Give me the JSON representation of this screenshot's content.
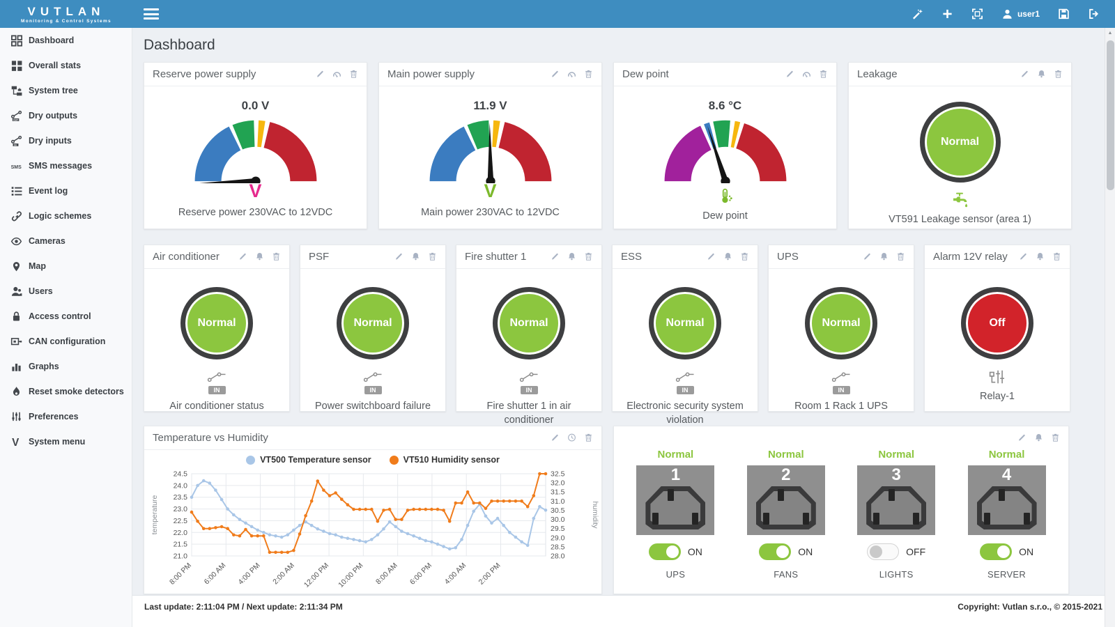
{
  "header": {
    "brand": "VUTLAN",
    "tagline": "Monitoring & Control Systems",
    "user": "user1"
  },
  "page": {
    "title": "Dashboard"
  },
  "sidebar": {
    "items": [
      {
        "label": "Dashboard",
        "icon": "dashboard"
      },
      {
        "label": "Overall stats",
        "icon": "overall-stats"
      },
      {
        "label": "System tree",
        "icon": "system-tree"
      },
      {
        "label": "Dry outputs",
        "icon": "dry-outputs"
      },
      {
        "label": "Dry inputs",
        "icon": "dry-inputs"
      },
      {
        "label": "SMS messages",
        "icon": "sms"
      },
      {
        "label": "Event log",
        "icon": "event-log"
      },
      {
        "label": "Logic schemes",
        "icon": "logic-schemes"
      },
      {
        "label": "Cameras",
        "icon": "cameras"
      },
      {
        "label": "Map",
        "icon": "map"
      },
      {
        "label": "Users",
        "icon": "users"
      },
      {
        "label": "Access control",
        "icon": "access-control"
      },
      {
        "label": "CAN configuration",
        "icon": "can-config"
      },
      {
        "label": "Graphs",
        "icon": "graphs"
      },
      {
        "label": "Reset smoke detectors",
        "icon": "smoke"
      },
      {
        "label": "Preferences",
        "icon": "preferences"
      },
      {
        "label": "System menu",
        "icon": "system-menu"
      }
    ]
  },
  "colors": {
    "topbar": "#3e8dc0",
    "gauge_blue": "#3b7cc0",
    "gauge_green": "#21a352",
    "gauge_yellow": "#f6b70f",
    "gauge_red": "#c02430",
    "gauge_purple": "#a1219c",
    "normal_green": "#8cc63f",
    "off_red": "#d2232a",
    "unit_pink": "#e62a8d",
    "unit_green": "#7cb92c"
  },
  "cards": {
    "row1": [
      {
        "type": "gauge",
        "title": "Reserve power supply",
        "header_icons": [
          "pencil",
          "gauge",
          "trash"
        ],
        "value": "0.0 V",
        "unit": "V",
        "unit_color": "#e62a8d",
        "caption": "Reserve power 230VAC to 12VDC",
        "needle": -0.012,
        "segments": [
          [
            "#3b7cc0",
            0,
            0.355
          ],
          [
            "#21a352",
            0.375,
            0.49
          ],
          [
            "#f6b70f",
            0.515,
            0.55
          ],
          [
            "#c02430",
            0.575,
            1
          ]
        ]
      },
      {
        "type": "gauge",
        "title": "Main power supply",
        "header_icons": [
          "pencil",
          "gauge",
          "trash"
        ],
        "value": "11.9 V",
        "unit": "V",
        "unit_color": "#7cb92c",
        "caption": "Main power 230VAC to 12VDC",
        "needle": 0.495,
        "segments": [
          [
            "#3b7cc0",
            0,
            0.355
          ],
          [
            "#21a352",
            0.375,
            0.49
          ],
          [
            "#f6b70f",
            0.515,
            0.55
          ],
          [
            "#c02430",
            0.575,
            1
          ]
        ]
      },
      {
        "type": "gauge",
        "title": "Dew point",
        "header_icons": [
          "pencil",
          "gauge",
          "trash"
        ],
        "value": "8.6 °C",
        "unit": "",
        "unit_icon": "thermo",
        "caption": "Dew point",
        "needle": 0.4,
        "segments": [
          [
            "#a1219c",
            0,
            0.365
          ],
          [
            "#3b7cc0",
            0.385,
            0.415
          ],
          [
            "#21a352",
            0.435,
            0.525
          ],
          [
            "#f6b70f",
            0.55,
            0.578
          ],
          [
            "#c02430",
            0.6,
            1
          ]
        ]
      },
      {
        "type": "status",
        "title": "Leakage",
        "header_icons": [
          "pencil",
          "bell",
          "trash"
        ],
        "state": "Normal",
        "state_color": "#8cc63f",
        "icon": "faucet",
        "badge": null,
        "caption": "VT591 Leakage sensor (area 1)"
      }
    ],
    "row2": [
      {
        "type": "status",
        "title": "Air conditioner",
        "header_icons": [
          "pencil",
          "bell",
          "trash"
        ],
        "state": "Normal",
        "state_color": "#8cc63f",
        "icon": "dry-input",
        "badge": "IN",
        "caption": "Air conditioner status"
      },
      {
        "type": "status",
        "title": "PSF",
        "header_icons": [
          "pencil",
          "bell",
          "trash"
        ],
        "state": "Normal",
        "state_color": "#8cc63f",
        "icon": "dry-input",
        "badge": "IN",
        "caption": "Power switchboard failure"
      },
      {
        "type": "status",
        "title": "Fire shutter 1",
        "header_icons": [
          "pencil",
          "bell",
          "trash"
        ],
        "state": "Normal",
        "state_color": "#8cc63f",
        "icon": "dry-input",
        "badge": "IN",
        "caption": "Fire shutter 1 in air conditioner"
      },
      {
        "type": "status",
        "title": "ESS",
        "header_icons": [
          "pencil",
          "bell",
          "trash"
        ],
        "state": "Normal",
        "state_color": "#8cc63f",
        "icon": "dry-input",
        "badge": "IN",
        "caption": "Electronic security system violation"
      },
      {
        "type": "status",
        "title": "UPS",
        "header_icons": [
          "pencil",
          "bell",
          "trash"
        ],
        "state": "Normal",
        "state_color": "#8cc63f",
        "icon": "dry-input",
        "badge": "IN",
        "caption": "Room 1 Rack 1 UPS"
      },
      {
        "type": "status",
        "title": "Alarm 12V relay",
        "header_icons": [
          "pencil",
          "bell",
          "trash"
        ],
        "state": "Off",
        "state_color": "#d2232a",
        "icon": "relay",
        "badge": null,
        "caption": "Relay-1"
      }
    ],
    "chart_header_icons": [
      "pencil",
      "clock",
      "trash"
    ],
    "outlet_header_icons": [
      "pencil",
      "bell",
      "trash"
    ]
  },
  "chart_data": {
    "type": "line",
    "title": "Temperature vs Humidity",
    "legend_position": "top",
    "grid": true,
    "series": [
      {
        "name": "VT500 Temperature sensor",
        "color": "#a9c6e7",
        "axis": "left",
        "values": [
          23.5,
          24.0,
          24.2,
          24.1,
          23.8,
          23.4,
          23.0,
          22.75,
          22.55,
          22.4,
          22.25,
          22.1,
          22.0,
          21.9,
          21.85,
          21.8,
          21.9,
          22.1,
          22.3,
          22.45,
          22.3,
          22.15,
          22.05,
          21.95,
          21.9,
          21.8,
          21.75,
          21.7,
          21.65,
          21.6,
          21.7,
          21.9,
          22.15,
          22.45,
          22.25,
          22.05,
          21.95,
          21.85,
          21.75,
          21.65,
          21.6,
          21.5,
          21.4,
          21.3,
          21.35,
          21.7,
          22.3,
          22.9,
          23.2,
          22.7,
          22.4,
          22.6,
          22.3,
          22.0,
          21.8,
          21.6,
          21.45,
          22.6,
          23.1,
          22.95
        ]
      },
      {
        "name": "VT510 Humidity sensor",
        "color": "#f07c1b",
        "axis": "right",
        "values": [
          30.4,
          29.9,
          29.5,
          29.5,
          29.55,
          29.6,
          29.5,
          29.15,
          29.1,
          29.45,
          29.1,
          29.1,
          29.1,
          28.2,
          28.2,
          28.2,
          28.2,
          28.3,
          29.2,
          30.2,
          31.0,
          32.1,
          31.6,
          31.3,
          31.45,
          31.1,
          30.8,
          30.55,
          30.55,
          30.55,
          30.55,
          29.9,
          30.5,
          30.55,
          30.0,
          30.0,
          30.5,
          30.55,
          30.55,
          30.55,
          30.55,
          30.55,
          30.5,
          29.9,
          30.9,
          30.9,
          31.5,
          30.9,
          30.9,
          30.6,
          31.0,
          31.0,
          31.0,
          31.0,
          31.0,
          31.0,
          30.7,
          31.3,
          32.5,
          32.5
        ]
      }
    ],
    "x_labels": [
      "8:00 PM",
      "6:00 AM",
      "4:00 PM",
      "2:00 AM",
      "12:00 PM",
      "10:00 PM",
      "8:00 AM",
      "6:00 PM",
      "4:00 AM",
      "2:00 PM"
    ],
    "left_axis": {
      "label": "temperature",
      "min": 21.0,
      "max": 24.5,
      "ticks": [
        "24.5",
        "24.0",
        "23.5",
        "23.0",
        "22.5",
        "22.0",
        "21.5",
        "21.0"
      ]
    },
    "right_axis": {
      "label": "humidity",
      "min": 28.0,
      "max": 32.5,
      "ticks": [
        "32.5",
        "32.0",
        "31.5",
        "31.0",
        "30.5",
        "30.0",
        "29.5",
        "29.0",
        "28.5",
        "28.0"
      ]
    }
  },
  "outlets": {
    "items": [
      {
        "number": "1",
        "status": "Normal",
        "toggle": "ON",
        "on": true,
        "label": "UPS"
      },
      {
        "number": "2",
        "status": "Normal",
        "toggle": "ON",
        "on": true,
        "label": "FANS"
      },
      {
        "number": "3",
        "status": "Normal",
        "toggle": "OFF",
        "on": false,
        "label": "LIGHTS"
      },
      {
        "number": "4",
        "status": "Normal",
        "toggle": "ON",
        "on": true,
        "label": "SERVER"
      }
    ]
  },
  "footer": {
    "last_update": "Last update: 2:11:04 PM / Next update: 2:11:34 PM",
    "copyright": "Copyright: Vutlan s.r.o., © 2015-2021"
  },
  "scrollbar": {
    "up_arrow": "▲"
  }
}
